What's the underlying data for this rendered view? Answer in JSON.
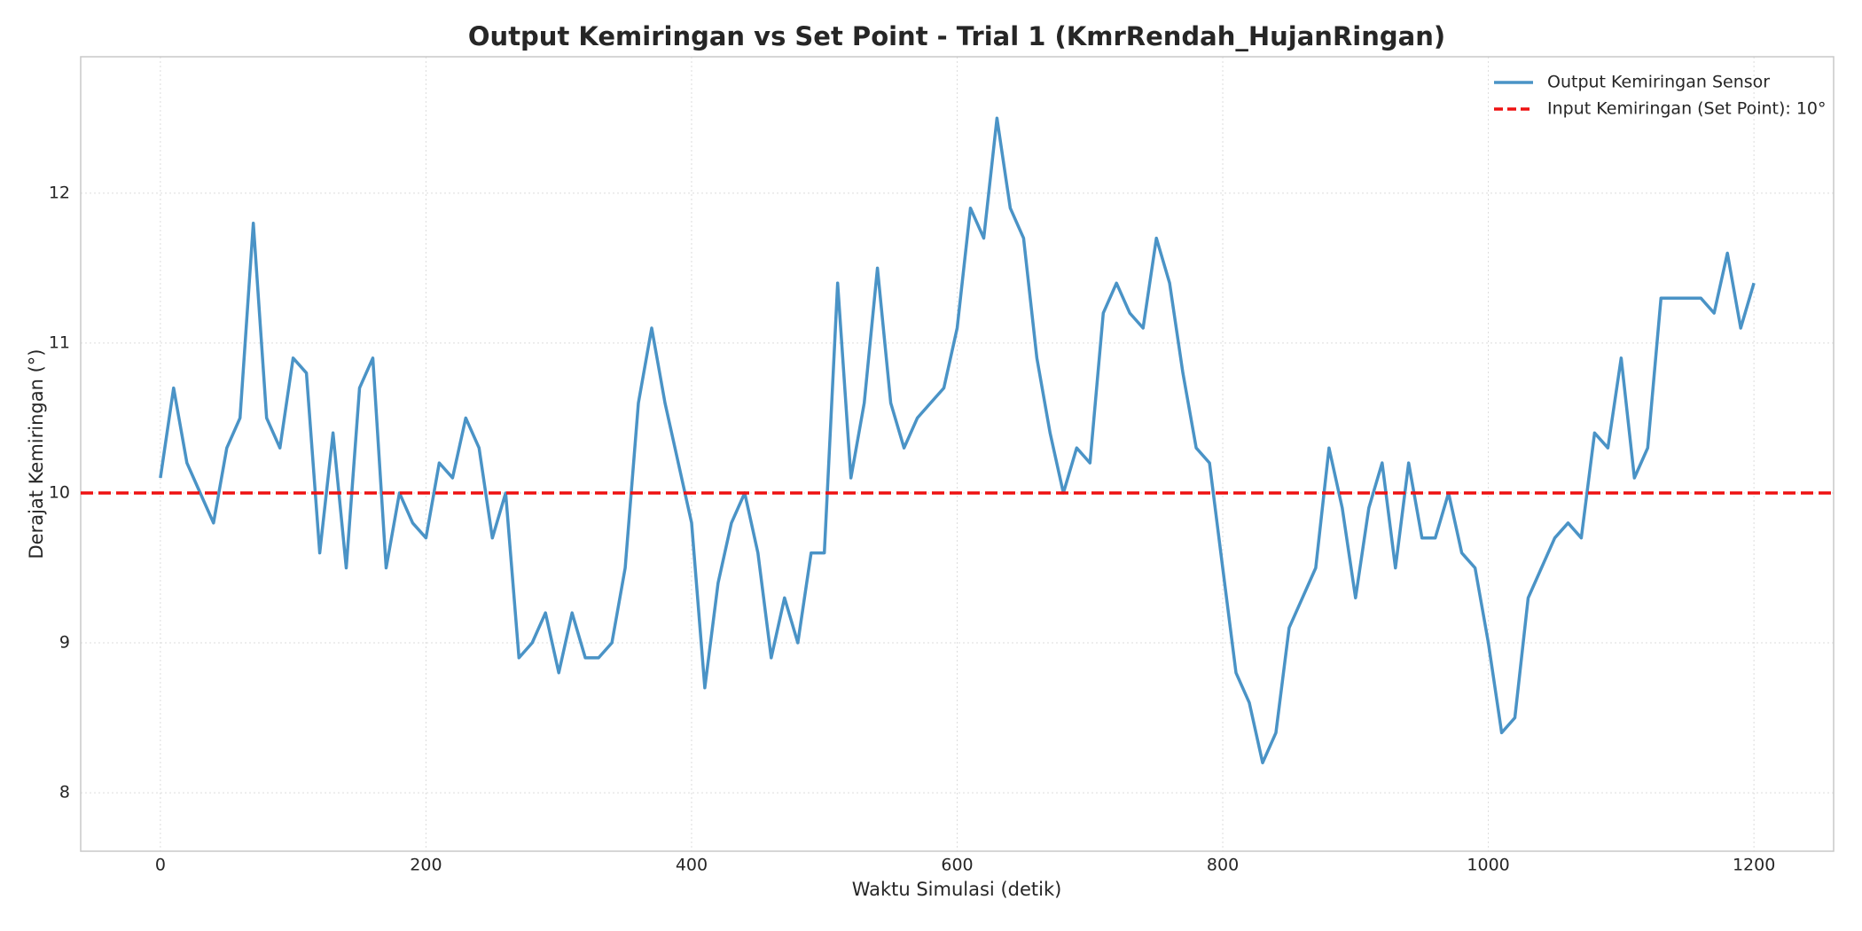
{
  "chart_data": {
    "type": "line",
    "title": "Output Kemiringan vs Set Point - Trial 1 (KmrRendah_HujanRingan)",
    "x_label": "Waktu Simulasi (detik)",
    "y_label": "Derajat Kemiringan (°)",
    "x": [
      0,
      10,
      20,
      30,
      40,
      50,
      60,
      70,
      80,
      90,
      100,
      110,
      120,
      130,
      140,
      150,
      160,
      170,
      180,
      190,
      200,
      210,
      220,
      230,
      240,
      250,
      260,
      270,
      280,
      290,
      300,
      310,
      320,
      330,
      340,
      350,
      360,
      370,
      380,
      390,
      400,
      410,
      420,
      430,
      440,
      450,
      460,
      470,
      480,
      490,
      500,
      510,
      520,
      530,
      540,
      550,
      560,
      570,
      580,
      590,
      600,
      610,
      620,
      630,
      640,
      650,
      660,
      670,
      680,
      690,
      700,
      710,
      720,
      730,
      740,
      750,
      760,
      770,
      780,
      790,
      800,
      810,
      820,
      830,
      840,
      850,
      860,
      870,
      880,
      890,
      900,
      910,
      920,
      930,
      940,
      950,
      960,
      970,
      980,
      990,
      1000,
      1010,
      1020,
      1030,
      1040,
      1050,
      1060,
      1070,
      1080,
      1090,
      1100,
      1110,
      1120,
      1130,
      1140,
      1150,
      1160,
      1170,
      1180,
      1190,
      1200
    ],
    "series": [
      {
        "name": "Output Kemiringan Sensor",
        "color": "#4a93c6",
        "values": [
          10.1,
          10.7,
          10.2,
          10.0,
          9.8,
          10.3,
          10.5,
          11.8,
          10.5,
          10.3,
          10.9,
          10.8,
          9.6,
          10.4,
          9.5,
          10.7,
          10.9,
          9.5,
          10.0,
          9.8,
          9.7,
          10.2,
          10.1,
          10.5,
          10.3,
          9.7,
          10.0,
          8.9,
          9.0,
          9.2,
          8.8,
          9.2,
          8.9,
          8.9,
          9.0,
          9.5,
          10.6,
          11.1,
          10.6,
          10.2,
          9.8,
          8.7,
          9.4,
          9.8,
          10.0,
          9.6,
          8.9,
          9.3,
          9.0,
          9.6,
          9.6,
          11.4,
          10.1,
          10.6,
          11.5,
          10.6,
          10.3,
          10.5,
          10.6,
          10.7,
          11.1,
          11.9,
          11.7,
          12.5,
          11.9,
          11.7,
          10.9,
          10.4,
          10.0,
          10.3,
          10.2,
          11.2,
          11.4,
          11.2,
          11.1,
          11.7,
          11.4,
          10.8,
          10.3,
          10.2,
          9.5,
          8.8,
          8.6,
          8.2,
          8.4,
          9.1,
          9.3,
          9.5,
          10.3,
          9.9,
          9.3,
          9.9,
          10.2,
          9.5,
          10.2,
          9.7,
          9.7,
          10.0,
          9.6,
          9.5,
          9.0,
          8.4,
          8.5,
          9.3,
          9.5,
          9.7,
          9.8,
          9.7,
          10.4,
          10.3,
          10.9,
          10.1,
          10.3,
          11.3,
          11.3,
          11.3,
          11.3,
          11.2,
          11.6,
          11.1,
          11.4
        ]
      },
      {
        "name": "Input Kemiringan (Set Point): 10°",
        "color": "#ee1111",
        "setpoint": 10
      }
    ],
    "xlim": [
      -60,
      1260
    ],
    "ylim": [
      7.61,
      12.91
    ],
    "xticks": [
      0,
      200,
      400,
      600,
      800,
      1000,
      1200
    ],
    "yticks": [
      8,
      9,
      10,
      11,
      12
    ],
    "grid": true,
    "legend": "upper right"
  }
}
